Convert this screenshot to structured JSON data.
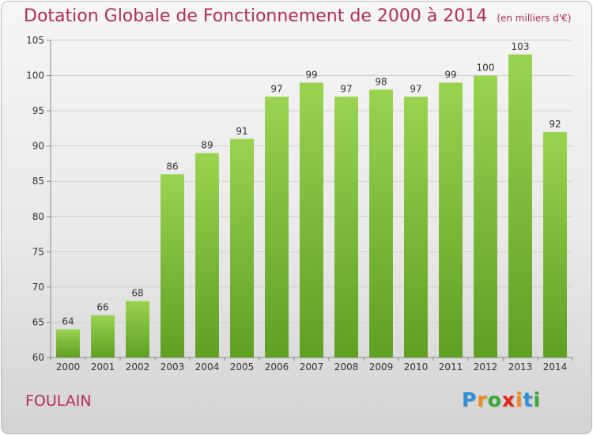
{
  "chart_data": {
    "type": "bar",
    "title": "Dotation Globale de Fonctionnement de 2000 à 2014",
    "subtitle": "(en milliers d'€)",
    "categories": [
      "2000",
      "2001",
      "2002",
      "2003",
      "2004",
      "2005",
      "2006",
      "2007",
      "2008",
      "2009",
      "2010",
      "2011",
      "2012",
      "2013",
      "2014"
    ],
    "values": [
      64,
      66,
      68,
      86,
      89,
      91,
      97,
      99,
      97,
      98,
      97,
      99,
      100,
      103,
      92
    ],
    "ylim": [
      60,
      105
    ],
    "yticks": [
      60,
      65,
      70,
      75,
      80,
      85,
      90,
      95,
      100,
      105
    ],
    "grid": true,
    "bar_color": "#7dc040",
    "title_color": "#b52a5c"
  },
  "footer": {
    "commune": "FOULAIN",
    "logo_letters": [
      "P",
      "r",
      "o",
      "x",
      "i",
      "t",
      "i"
    ],
    "logo_colors": [
      "#2f8fd8",
      "#f08a1c",
      "#3aa935",
      "#e2231a",
      "#f08a1c",
      "#2f8fd8",
      "#3aa935"
    ]
  }
}
